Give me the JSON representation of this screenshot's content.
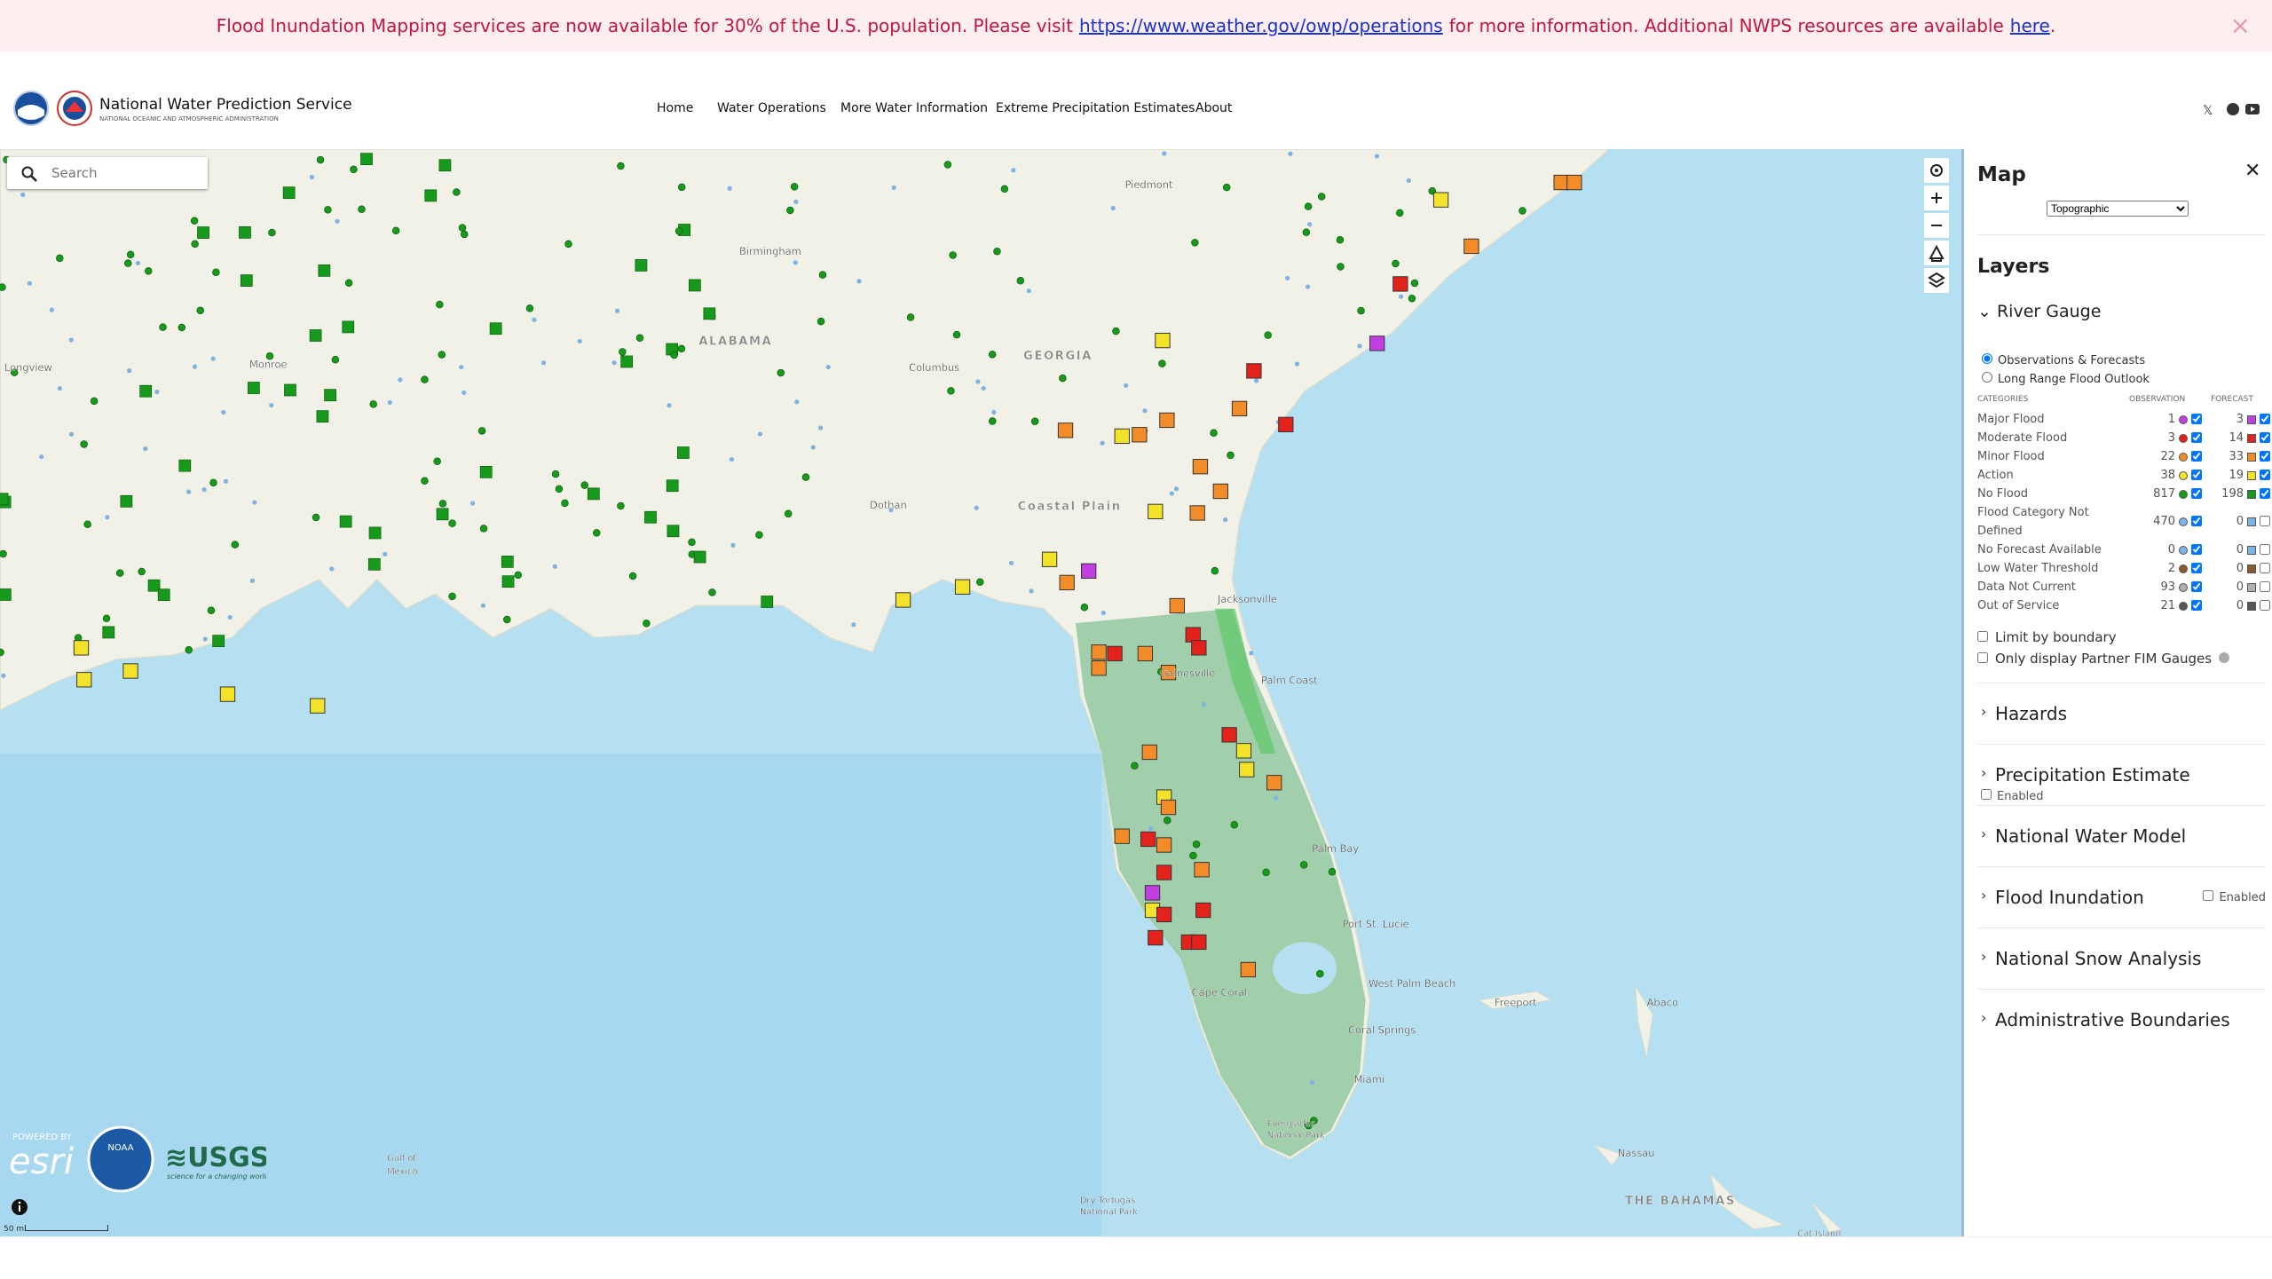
{
  "banner": {
    "text1": "Flood Inundation Mapping services are now available for 30% of the U.S. population. Please visit",
    "link1": "https://www.weather.gov/owp/operations",
    "text2": "for more information. Additional NWPS resources are available",
    "link2": "here",
    "text3": ".",
    "close": "×"
  },
  "header": {
    "title": "National Water Prediction Service",
    "subtitle": "NATIONAL OCEANIC AND ATMOSPHERIC ADMINISTRATION",
    "nav": [
      "Home",
      "Water Operations",
      "More Water Information",
      "Extreme Precipitation Estimates",
      "About"
    ]
  },
  "map": {
    "search_placeholder": "Search",
    "scale": "50 mi",
    "esri": "esri",
    "esri_powered": "POWERED BY",
    "noaa": "NOAA",
    "usgs": "≋USGS",
    "usgs_tagline": "science for a changing world",
    "labels": [
      "Piedmont",
      "Birmingham",
      "ALABAMA",
      "GEORGIA",
      "Columbus",
      "Monroe",
      "Longview",
      "Dothan",
      "Coastal Plain",
      "Jacksonville",
      "Palm Coast",
      "Gainesville",
      "Palm Bay",
      "Port St. Lucie",
      "West Palm Beach",
      "Cape Coral",
      "Coral Springs",
      "Miami",
      "Freeport",
      "Abaco",
      "Nassau",
      "THE BAHAMAS",
      "Gulf of",
      "Mexico",
      "Dry Tortugas",
      "National Park",
      "Everglades",
      "National Park",
      "Cat Island"
    ]
  },
  "sidebar": {
    "title": "Map",
    "close": "✕",
    "basemap": "Topographic",
    "layers_title": "Layers",
    "river_gauge": "River Gauge",
    "modes": [
      {
        "label": "Observations & Forecasts",
        "checked": true
      },
      {
        "label": "Long Range Flood Outlook",
        "checked": false
      }
    ],
    "table_headers": [
      "CATEGORIES",
      "OBSERVATION",
      "FORECAST"
    ],
    "rows": [
      {
        "name": "Major Flood",
        "observation": 1,
        "forecast": 3,
        "color": "#c13fe0",
        "obs_checked": true,
        "fc_checked": true
      },
      {
        "name": "Moderate Flood",
        "observation": 3,
        "forecast": 14,
        "color": "#e3221c",
        "obs_checked": true,
        "fc_checked": true
      },
      {
        "name": "Minor Flood",
        "observation": 22,
        "forecast": 33,
        "color": "#f28c28",
        "obs_checked": true,
        "fc_checked": true
      },
      {
        "name": "Action",
        "observation": 38,
        "forecast": 19,
        "color": "#f2e32a",
        "obs_checked": true,
        "fc_checked": true
      },
      {
        "name": "No Flood",
        "observation": 817,
        "forecast": 198,
        "color": "#17991b",
        "obs_checked": true,
        "fc_checked": true
      },
      {
        "name": "Flood Category Not Defined",
        "observation": 470,
        "forecast": 0,
        "color": "#7fb3e3",
        "obs_checked": true,
        "fc_checked": false
      },
      {
        "name": "No Forecast Available",
        "observation": 0,
        "forecast": 0,
        "color": "#7fb3e3",
        "obs_checked": true,
        "fc_checked": false
      },
      {
        "name": "Low Water Threshold",
        "observation": 2,
        "forecast": 0,
        "color": "#8b5a2b",
        "obs_checked": true,
        "fc_checked": false
      },
      {
        "name": "Data Not Current",
        "observation": 93,
        "forecast": 0,
        "color": "#b0b0b0",
        "obs_checked": true,
        "fc_checked": false
      },
      {
        "name": "Out of Service",
        "observation": 21,
        "forecast": 0,
        "color": "#555555",
        "obs_checked": true,
        "fc_checked": false
      }
    ],
    "options": [
      "Limit by boundary",
      "Only display Partner FIM Gauges"
    ],
    "sections": [
      {
        "name": "Hazards"
      },
      {
        "name": "Precipitation Estimate",
        "enabled": "Enabled"
      },
      {
        "name": "National Water Model"
      },
      {
        "name": "Flood Inundation",
        "enabled": "Enabled"
      },
      {
        "name": "National Snow Analysis"
      },
      {
        "name": "Administrative Boundaries"
      }
    ]
  }
}
